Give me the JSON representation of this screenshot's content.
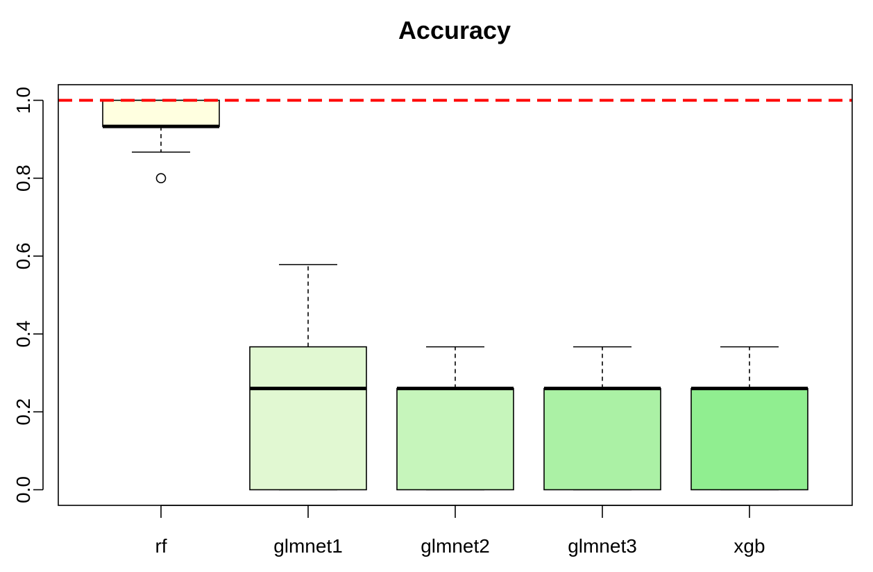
{
  "chart_data": {
    "type": "boxplot",
    "title": "Accuracy",
    "xlabel": "",
    "ylabel": "",
    "ylim": [
      -0.04,
      1.04
    ],
    "yticks": [
      "0.0",
      "0.2",
      "0.4",
      "0.6",
      "0.8",
      "1.0"
    ],
    "categories": [
      "rf",
      "glmnet1",
      "glmnet2",
      "glmnet3",
      "xgb"
    ],
    "boxes": [
      {
        "name": "rf",
        "whisker_low": 0.867,
        "q1": 0.933,
        "median": 0.933,
        "q3": 1.0,
        "whisker_high": 1.0,
        "outliers": [
          0.8
        ],
        "color": "#ffffe0"
      },
      {
        "name": "glmnet1",
        "whisker_low": 0.0,
        "q1": 0.0,
        "median": 0.26,
        "q3": 0.367,
        "whisker_high": 0.578,
        "outliers": [],
        "color": "#e1f8d2"
      },
      {
        "name": "glmnet2",
        "whisker_low": 0.0,
        "q1": 0.0,
        "median": 0.26,
        "q3": 0.26,
        "whisker_high": 0.367,
        "outliers": [],
        "color": "#c6f5bb"
      },
      {
        "name": "glmnet3",
        "whisker_low": 0.0,
        "q1": 0.0,
        "median": 0.26,
        "q3": 0.26,
        "whisker_high": 0.367,
        "outliers": [],
        "color": "#abf1a5"
      },
      {
        "name": "xgb",
        "whisker_low": 0.0,
        "q1": 0.0,
        "median": 0.26,
        "q3": 0.26,
        "whisker_high": 0.367,
        "outliers": [],
        "color": "#90ee90"
      }
    ],
    "reference_line": {
      "y": 1.0,
      "color": "#ff0000",
      "style": "dashed"
    },
    "grid": false,
    "legend": "none"
  }
}
